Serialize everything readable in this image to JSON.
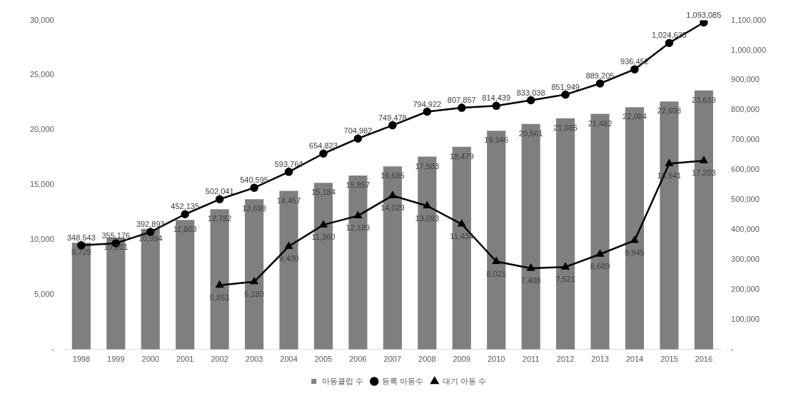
{
  "chart_data": {
    "type": "bar",
    "categories": [
      "1998",
      "1999",
      "2000",
      "2001",
      "2002",
      "2003",
      "2004",
      "2005",
      "2006",
      "2007",
      "2008",
      "2009",
      "2010",
      "2011",
      "2012",
      "2013",
      "2014",
      "2015",
      "2016"
    ],
    "series": [
      {
        "name": "아동클럽 수",
        "color": "#7f7f7f",
        "values": [
          9729,
          10201,
          10994,
          11803,
          12782,
          13698,
          14457,
          15184,
          15857,
          16685,
          17583,
          18479,
          19946,
          20561,
          21085,
          21482,
          22084,
          22608,
          23619
        ],
        "value_labels": [
          "9,729",
          "10,201",
          "10,994",
          "11,803",
          "12,782",
          "13,698",
          "14,457",
          "15,184",
          "15,857",
          "16,685",
          "17,583",
          "18,479",
          "19,946",
          "20,561",
          "21,085",
          "21,482",
          "22,084",
          "22,608",
          "23,619"
        ]
      },
      {
        "name": "등록 아동수",
        "type": "line",
        "axis": "y2",
        "color": "#000000",
        "marker": "circle",
        "values": [
          348543,
          355176,
          392893,
          452135,
          502041,
          540595,
          593764,
          654823,
          704982,
          749478,
          794922,
          807857,
          814439,
          833038,
          851949,
          889205,
          936452,
          1024635,
          1093085
        ],
        "value_labels": [
          "348,543",
          "355,176",
          "392,893",
          "452,135",
          "502,041",
          "540,595",
          "593,764",
          "654,823",
          "704,982",
          "749,478",
          "794,922",
          "807,857",
          "814,439",
          "833,038",
          "851,949",
          "889,205",
          "936,452",
          "1,024,635",
          "1,093,085"
        ]
      },
      {
        "name": "대기 아동 수",
        "type": "line",
        "color": "#000000",
        "marker": "triangle",
        "values": [
          null,
          null,
          null,
          null,
          5851,
          6180,
          9400,
          11360,
          12189,
          14029,
          13093,
          11434,
          8021,
          7408,
          7521,
          8689,
          9945,
          16941,
          17203
        ],
        "value_labels": [
          null,
          null,
          null,
          null,
          "5,851",
          "6,180",
          "9,400",
          "11,360",
          "12,189",
          "14,029",
          "13,093",
          "11,434",
          "8,021",
          "7,408",
          "7,521",
          "8,689",
          "9,945",
          "16,941",
          "17,203"
        ]
      }
    ],
    "ylim": [
      0,
      30000
    ],
    "yticks": [
      {
        "value": 0,
        "label": "-"
      },
      {
        "value": 5000,
        "label": "5,000"
      },
      {
        "value": 10000,
        "label": "10,000"
      },
      {
        "value": 15000,
        "label": "15,000"
      },
      {
        "value": 20000,
        "label": "20,000"
      },
      {
        "value": 25000,
        "label": "25,000"
      },
      {
        "value": 30000,
        "label": "30,000"
      }
    ],
    "y2lim": [
      0,
      1100000
    ],
    "y2ticks": [
      {
        "value": 0,
        "label": "-"
      },
      {
        "value": 100000,
        "label": "100,000"
      },
      {
        "value": 200000,
        "label": "200,000"
      },
      {
        "value": 300000,
        "label": "300,000"
      },
      {
        "value": 400000,
        "label": "400,000"
      },
      {
        "value": 500000,
        "label": "500,000"
      },
      {
        "value": 600000,
        "label": "600,000"
      },
      {
        "value": 700000,
        "label": "700,000"
      },
      {
        "value": 800000,
        "label": "800,000"
      },
      {
        "value": 900000,
        "label": "900,000"
      },
      {
        "value": 1000000,
        "label": "1,000,000"
      },
      {
        "value": 1100000,
        "label": "1,100,000"
      }
    ],
    "grid": false,
    "legend": "bottom"
  }
}
